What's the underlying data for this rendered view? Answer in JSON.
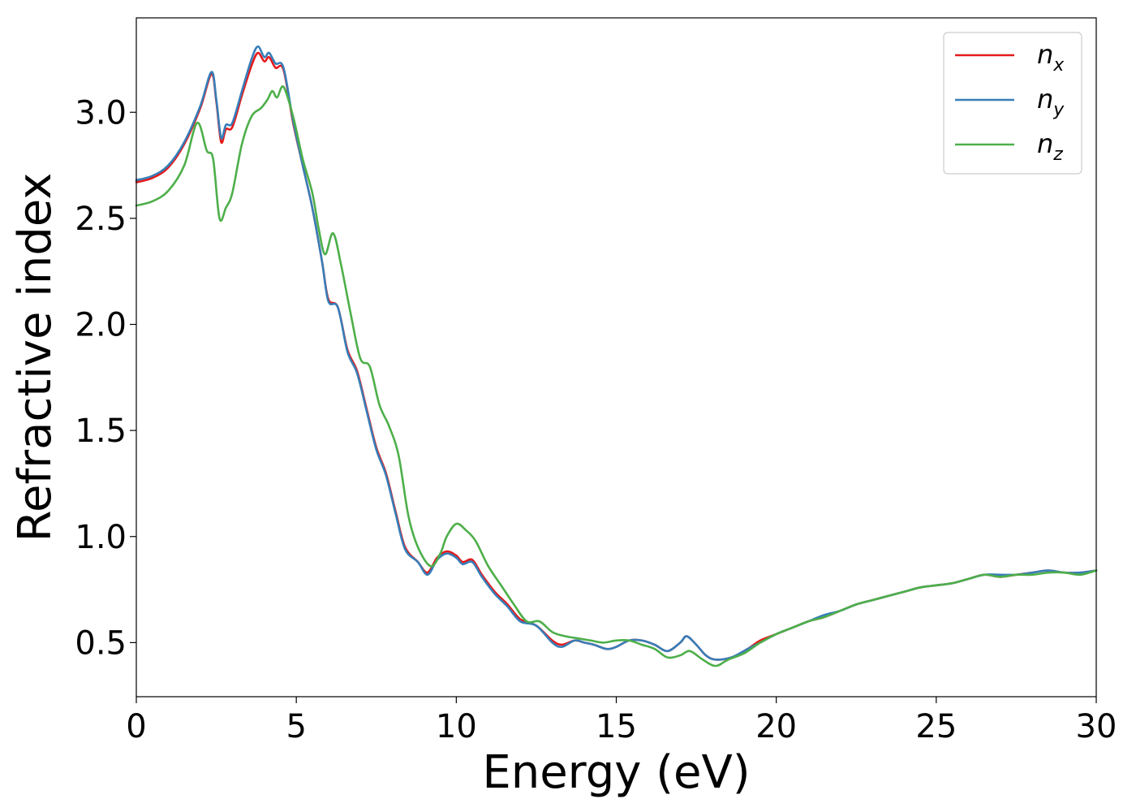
{
  "chart_data": {
    "type": "line",
    "xlabel": "Energy (eV)",
    "ylabel": "Refractive index",
    "xlim": [
      0,
      30
    ],
    "ylim": [
      0.245,
      3.445
    ],
    "xticks": [
      0,
      5,
      10,
      15,
      20,
      25,
      30
    ],
    "xtick_labels": [
      "0",
      "5",
      "10",
      "15",
      "20",
      "25",
      "30"
    ],
    "yticks": [
      0.5,
      1.0,
      1.5,
      2.0,
      2.5,
      3.0
    ],
    "ytick_labels": [
      "0.5",
      "1.0",
      "1.5",
      "2.0",
      "2.5",
      "3.0"
    ],
    "grid": false,
    "legend_position": "top-right",
    "series": [
      {
        "name": "n_x",
        "label_base": "n",
        "label_sub": "x",
        "color": "#e41a1c",
        "points": [
          [
            0,
            2.67
          ],
          [
            0.5,
            2.69
          ],
          [
            1.0,
            2.74
          ],
          [
            1.5,
            2.85
          ],
          [
            2.0,
            3.02
          ],
          [
            2.35,
            3.18
          ],
          [
            2.5,
            3.05
          ],
          [
            2.65,
            2.86
          ],
          [
            2.8,
            2.92
          ],
          [
            3.0,
            2.93
          ],
          [
            3.3,
            3.08
          ],
          [
            3.6,
            3.22
          ],
          [
            3.8,
            3.28
          ],
          [
            4.0,
            3.24
          ],
          [
            4.15,
            3.26
          ],
          [
            4.35,
            3.21
          ],
          [
            4.6,
            3.2
          ],
          [
            4.9,
            2.95
          ],
          [
            5.2,
            2.75
          ],
          [
            5.5,
            2.55
          ],
          [
            5.8,
            2.3
          ],
          [
            6.0,
            2.12
          ],
          [
            6.3,
            2.08
          ],
          [
            6.6,
            1.88
          ],
          [
            6.9,
            1.78
          ],
          [
            7.2,
            1.6
          ],
          [
            7.5,
            1.42
          ],
          [
            7.8,
            1.3
          ],
          [
            8.1,
            1.12
          ],
          [
            8.4,
            0.95
          ],
          [
            8.8,
            0.88
          ],
          [
            9.1,
            0.83
          ],
          [
            9.4,
            0.9
          ],
          [
            9.7,
            0.93
          ],
          [
            10.0,
            0.91
          ],
          [
            10.2,
            0.88
          ],
          [
            10.5,
            0.89
          ],
          [
            10.8,
            0.82
          ],
          [
            11.2,
            0.74
          ],
          [
            11.6,
            0.68
          ],
          [
            12.0,
            0.61
          ],
          [
            12.5,
            0.58
          ],
          [
            13.0,
            0.51
          ],
          [
            13.3,
            0.49
          ],
          [
            13.7,
            0.51
          ],
          [
            14.0,
            0.5
          ],
          [
            14.3,
            0.49
          ],
          [
            14.7,
            0.47
          ],
          [
            15.0,
            0.48
          ],
          [
            15.4,
            0.51
          ],
          [
            15.8,
            0.51
          ],
          [
            16.2,
            0.49
          ],
          [
            16.6,
            0.46
          ],
          [
            17.0,
            0.5
          ],
          [
            17.2,
            0.53
          ],
          [
            17.5,
            0.49
          ],
          [
            17.8,
            0.44
          ],
          [
            18.1,
            0.42
          ],
          [
            18.6,
            0.43
          ],
          [
            19.1,
            0.47
          ],
          [
            19.5,
            0.51
          ],
          [
            20.0,
            0.54
          ],
          [
            20.5,
            0.57
          ],
          [
            21.0,
            0.6
          ],
          [
            21.5,
            0.62
          ],
          [
            22.0,
            0.65
          ],
          [
            22.5,
            0.68
          ],
          [
            23.0,
            0.7
          ],
          [
            23.5,
            0.72
          ],
          [
            24.0,
            0.74
          ],
          [
            24.5,
            0.76
          ],
          [
            25.0,
            0.77
          ],
          [
            25.5,
            0.78
          ],
          [
            26.0,
            0.8
          ],
          [
            26.5,
            0.82
          ],
          [
            27.0,
            0.81
          ],
          [
            27.5,
            0.82
          ],
          [
            28.0,
            0.83
          ],
          [
            28.5,
            0.84
          ],
          [
            29.0,
            0.83
          ],
          [
            29.5,
            0.83
          ],
          [
            30.0,
            0.84
          ]
        ]
      },
      {
        "name": "n_y",
        "label_base": "n",
        "label_sub": "y",
        "color": "#377eb8",
        "points": [
          [
            0,
            2.68
          ],
          [
            0.5,
            2.7
          ],
          [
            1.0,
            2.75
          ],
          [
            1.5,
            2.86
          ],
          [
            2.0,
            3.03
          ],
          [
            2.35,
            3.19
          ],
          [
            2.5,
            3.06
          ],
          [
            2.65,
            2.88
          ],
          [
            2.8,
            2.94
          ],
          [
            3.0,
            2.95
          ],
          [
            3.3,
            3.1
          ],
          [
            3.6,
            3.25
          ],
          [
            3.8,
            3.31
          ],
          [
            4.0,
            3.26
          ],
          [
            4.15,
            3.28
          ],
          [
            4.35,
            3.23
          ],
          [
            4.6,
            3.21
          ],
          [
            4.9,
            2.96
          ],
          [
            5.2,
            2.75
          ],
          [
            5.5,
            2.55
          ],
          [
            5.8,
            2.3
          ],
          [
            6.0,
            2.11
          ],
          [
            6.3,
            2.08
          ],
          [
            6.6,
            1.87
          ],
          [
            6.9,
            1.77
          ],
          [
            7.2,
            1.59
          ],
          [
            7.5,
            1.41
          ],
          [
            7.8,
            1.29
          ],
          [
            8.1,
            1.11
          ],
          [
            8.4,
            0.94
          ],
          [
            8.8,
            0.88
          ],
          [
            9.1,
            0.82
          ],
          [
            9.4,
            0.89
          ],
          [
            9.7,
            0.92
          ],
          [
            10.0,
            0.9
          ],
          [
            10.2,
            0.87
          ],
          [
            10.5,
            0.88
          ],
          [
            10.8,
            0.81
          ],
          [
            11.2,
            0.73
          ],
          [
            11.6,
            0.67
          ],
          [
            12.0,
            0.6
          ],
          [
            12.5,
            0.58
          ],
          [
            13.0,
            0.5
          ],
          [
            13.3,
            0.48
          ],
          [
            13.7,
            0.51
          ],
          [
            14.0,
            0.5
          ],
          [
            14.3,
            0.49
          ],
          [
            14.7,
            0.47
          ],
          [
            15.0,
            0.48
          ],
          [
            15.4,
            0.51
          ],
          [
            15.8,
            0.51
          ],
          [
            16.2,
            0.49
          ],
          [
            16.6,
            0.46
          ],
          [
            17.0,
            0.5
          ],
          [
            17.2,
            0.53
          ],
          [
            17.5,
            0.49
          ],
          [
            17.8,
            0.44
          ],
          [
            18.1,
            0.42
          ],
          [
            18.6,
            0.43
          ],
          [
            19.1,
            0.47
          ],
          [
            19.5,
            0.5
          ],
          [
            20.0,
            0.54
          ],
          [
            20.5,
            0.57
          ],
          [
            21.0,
            0.6
          ],
          [
            21.5,
            0.63
          ],
          [
            22.0,
            0.65
          ],
          [
            22.5,
            0.68
          ],
          [
            23.0,
            0.7
          ],
          [
            23.5,
            0.72
          ],
          [
            24.0,
            0.74
          ],
          [
            24.5,
            0.76
          ],
          [
            25.0,
            0.77
          ],
          [
            25.5,
            0.78
          ],
          [
            26.0,
            0.8
          ],
          [
            26.5,
            0.82
          ],
          [
            27.0,
            0.82
          ],
          [
            27.5,
            0.82
          ],
          [
            28.0,
            0.83
          ],
          [
            28.5,
            0.84
          ],
          [
            29.0,
            0.83
          ],
          [
            29.5,
            0.83
          ],
          [
            30.0,
            0.84
          ]
        ]
      },
      {
        "name": "n_z",
        "label_base": "n",
        "label_sub": "z",
        "color": "#4daf4a",
        "points": [
          [
            0,
            2.56
          ],
          [
            0.5,
            2.58
          ],
          [
            1.0,
            2.63
          ],
          [
            1.5,
            2.75
          ],
          [
            1.9,
            2.95
          ],
          [
            2.2,
            2.82
          ],
          [
            2.4,
            2.78
          ],
          [
            2.6,
            2.5
          ],
          [
            2.8,
            2.55
          ],
          [
            3.0,
            2.62
          ],
          [
            3.3,
            2.85
          ],
          [
            3.6,
            2.98
          ],
          [
            3.9,
            3.02
          ],
          [
            4.1,
            3.06
          ],
          [
            4.25,
            3.1
          ],
          [
            4.4,
            3.07
          ],
          [
            4.6,
            3.12
          ],
          [
            4.9,
            2.98
          ],
          [
            5.2,
            2.78
          ],
          [
            5.5,
            2.62
          ],
          [
            5.7,
            2.45
          ],
          [
            5.9,
            2.33
          ],
          [
            6.15,
            2.43
          ],
          [
            6.4,
            2.28
          ],
          [
            6.7,
            2.05
          ],
          [
            7.0,
            1.84
          ],
          [
            7.3,
            1.8
          ],
          [
            7.6,
            1.62
          ],
          [
            7.9,
            1.52
          ],
          [
            8.2,
            1.38
          ],
          [
            8.5,
            1.1
          ],
          [
            8.8,
            0.95
          ],
          [
            9.2,
            0.86
          ],
          [
            9.5,
            0.92
          ],
          [
            9.7,
            1.0
          ],
          [
            10.0,
            1.06
          ],
          [
            10.3,
            1.03
          ],
          [
            10.6,
            0.98
          ],
          [
            11.0,
            0.86
          ],
          [
            11.4,
            0.77
          ],
          [
            11.8,
            0.68
          ],
          [
            12.2,
            0.6
          ],
          [
            12.6,
            0.6
          ],
          [
            13.0,
            0.55
          ],
          [
            13.4,
            0.53
          ],
          [
            13.8,
            0.52
          ],
          [
            14.2,
            0.51
          ],
          [
            14.6,
            0.5
          ],
          [
            15.0,
            0.51
          ],
          [
            15.4,
            0.51
          ],
          [
            15.8,
            0.49
          ],
          [
            16.2,
            0.47
          ],
          [
            16.6,
            0.43
          ],
          [
            17.0,
            0.44
          ],
          [
            17.3,
            0.46
          ],
          [
            17.7,
            0.42
          ],
          [
            18.1,
            0.39
          ],
          [
            18.5,
            0.42
          ],
          [
            19.0,
            0.45
          ],
          [
            19.5,
            0.5
          ],
          [
            20.0,
            0.54
          ],
          [
            20.5,
            0.57
          ],
          [
            21.0,
            0.6
          ],
          [
            21.5,
            0.62
          ],
          [
            22.0,
            0.65
          ],
          [
            22.5,
            0.68
          ],
          [
            23.0,
            0.7
          ],
          [
            23.5,
            0.72
          ],
          [
            24.0,
            0.74
          ],
          [
            24.5,
            0.76
          ],
          [
            25.0,
            0.77
          ],
          [
            25.5,
            0.78
          ],
          [
            26.0,
            0.8
          ],
          [
            26.5,
            0.82
          ],
          [
            27.0,
            0.81
          ],
          [
            27.5,
            0.82
          ],
          [
            28.0,
            0.82
          ],
          [
            28.5,
            0.83
          ],
          [
            29.0,
            0.83
          ],
          [
            29.5,
            0.82
          ],
          [
            30.0,
            0.84
          ]
        ]
      }
    ]
  }
}
